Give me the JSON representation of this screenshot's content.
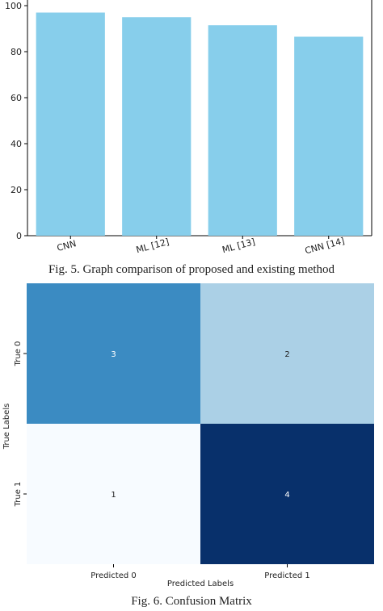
{
  "chart_data": [
    {
      "type": "bar",
      "categories": [
        "CNN",
        "ML [12]",
        "ML [13]",
        "CNN [14]"
      ],
      "values": [
        97,
        95,
        91.5,
        86.5
      ],
      "yticks": [
        0,
        20,
        40,
        60,
        80,
        100
      ],
      "ylim": [
        0,
        100
      ],
      "bar_color": "#87CEEB",
      "caption": "Fig. 5. Graph comparison of proposed and existing method"
    },
    {
      "type": "heatmap",
      "rows": [
        "True 0",
        "True 1"
      ],
      "columns": [
        "Predicted 0",
        "Predicted 1"
      ],
      "values": [
        [
          3,
          2
        ],
        [
          1,
          4
        ]
      ],
      "xlabel": "Predicted Labels",
      "ylabel": "True Labels",
      "colors": [
        [
          "#3b8bc2",
          "#abd0e6"
        ],
        [
          "#f7fbff",
          "#08306b"
        ]
      ],
      "caption": "Fig. 6. Confusion Matrix"
    }
  ]
}
